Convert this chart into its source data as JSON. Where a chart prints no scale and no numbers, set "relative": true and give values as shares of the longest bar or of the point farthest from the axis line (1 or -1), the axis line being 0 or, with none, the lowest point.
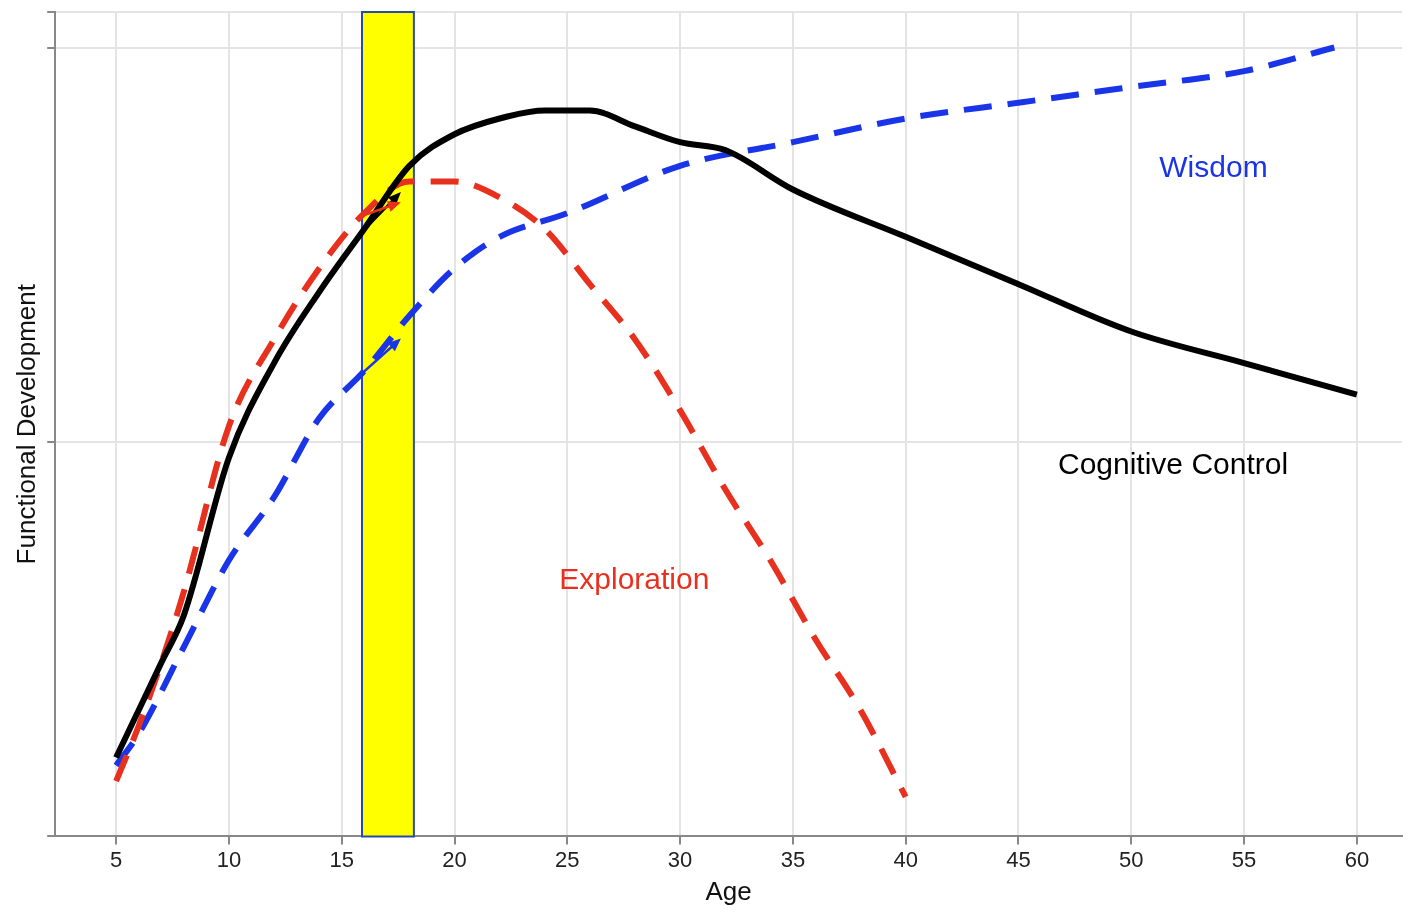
{
  "chart_data": {
    "type": "line",
    "xlabel": "Age",
    "ylabel": "Functional Development",
    "relative": true,
    "xlim": [
      2.3,
      62
    ],
    "xticks": [
      5,
      10,
      15,
      20,
      25,
      30,
      35,
      40,
      45,
      50,
      55,
      60
    ],
    "grid": true,
    "tick_labels": "x",
    "legend": false,
    "marker": "none",
    "bands": [
      {
        "axis": "x",
        "from": 15.9,
        "to": 18.2,
        "color": "#ffff00"
      }
    ],
    "series": [
      {
        "name": "Cognitive Control",
        "color": "#000000",
        "line_style": "solid",
        "x": [
          5,
          6,
          7,
          8,
          10,
          12,
          14,
          16,
          18,
          20,
          22,
          24,
          26,
          28,
          30,
          32,
          35,
          40,
          45,
          50,
          55,
          60
        ],
        "values": [
          0.1,
          0.16,
          0.22,
          0.28,
          0.48,
          0.6,
          0.69,
          0.77,
          0.85,
          0.89,
          0.91,
          0.92,
          0.92,
          0.9,
          0.88,
          0.87,
          0.82,
          0.76,
          0.7,
          0.64,
          0.6,
          0.56
        ]
      },
      {
        "name": "Exploration",
        "color": "#e8301e",
        "line_style": "dashed",
        "x": [
          5,
          6,
          7,
          8,
          10,
          12,
          14,
          16,
          18,
          20,
          22,
          24,
          26,
          28,
          30,
          32,
          34,
          36,
          38,
          40
        ],
        "values": [
          0.07,
          0.14,
          0.22,
          0.31,
          0.52,
          0.63,
          0.72,
          0.79,
          0.83,
          0.83,
          0.81,
          0.77,
          0.7,
          0.63,
          0.54,
          0.44,
          0.35,
          0.25,
          0.16,
          0.05
        ]
      },
      {
        "name": "Wisdom",
        "color": "#1a35e8",
        "line_style": "dashed",
        "x": [
          5,
          6,
          8,
          10,
          12,
          14,
          16,
          18,
          20,
          22,
          25,
          30,
          35,
          40,
          45,
          50,
          55,
          59
        ],
        "values": [
          0.09,
          0.13,
          0.24,
          0.35,
          0.43,
          0.53,
          0.59,
          0.66,
          0.72,
          0.76,
          0.79,
          0.85,
          0.88,
          0.91,
          0.93,
          0.95,
          0.97,
          1.0
        ]
      }
    ]
  }
}
